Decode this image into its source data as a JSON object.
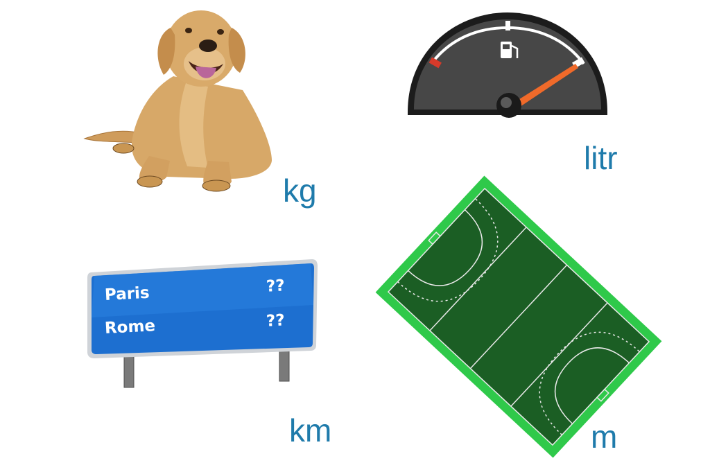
{
  "units": {
    "mass": "kg",
    "volume": "litr",
    "long_distance": "km",
    "length": "m"
  },
  "road_sign": {
    "rows": [
      {
        "city": "Paris",
        "value": "??"
      },
      {
        "city": "Rome",
        "value": "??"
      }
    ]
  },
  "colors": {
    "unit_text": "#1f7bab",
    "sign_blue": "#1d6fd0",
    "field_green": "#1b5e24",
    "field_border": "#2fc94a",
    "gauge_body": "#3d3d3d",
    "needle": "#f06a2a",
    "dog_fur": "#d7a868"
  },
  "icons": [
    "dog-illustration",
    "fuel-gauge-icon",
    "fuel-pump-icon",
    "road-sign",
    "hockey-field"
  ]
}
